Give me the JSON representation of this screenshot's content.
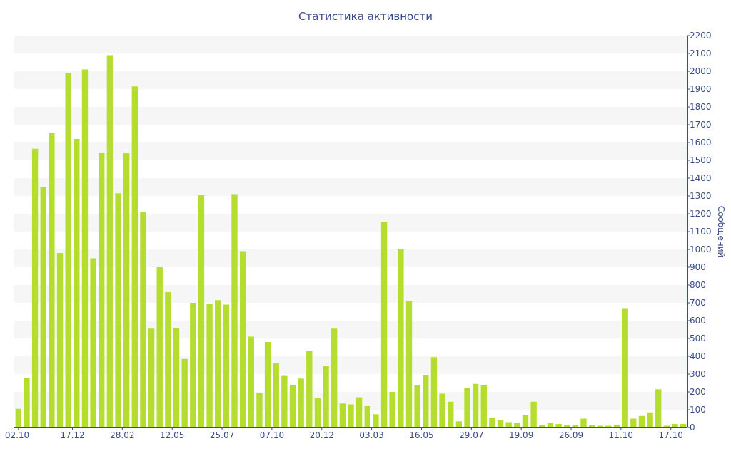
{
  "chart_data": {
    "type": "bar",
    "title": "Статистика активности",
    "ylabel": "Сообщений",
    "xlabel": "",
    "ylim": [
      0,
      2200
    ],
    "y_ticks": [
      0,
      100,
      200,
      300,
      400,
      500,
      600,
      700,
      800,
      900,
      1000,
      1100,
      1200,
      1300,
      1400,
      1500,
      1600,
      1700,
      1800,
      1900,
      2000,
      2100,
      2200
    ],
    "x_tick_labels": [
      {
        "label": "02.10",
        "index": 0
      },
      {
        "label": "17.12",
        "index": 6.5
      },
      {
        "label": "28.02",
        "index": 12.5
      },
      {
        "label": "12.05",
        "index": 18.5
      },
      {
        "label": "25.07",
        "index": 24.5
      },
      {
        "label": "07.10",
        "index": 30.5
      },
      {
        "label": "20.12",
        "index": 36.5
      },
      {
        "label": "03.03",
        "index": 42.5
      },
      {
        "label": "16.05",
        "index": 48.5
      },
      {
        "label": "29.07",
        "index": 54.5
      },
      {
        "label": "19.09",
        "index": 60.5
      },
      {
        "label": "26.09",
        "index": 66.5
      },
      {
        "label": "11.10",
        "index": 72.5
      },
      {
        "label": "17.10",
        "index": 78.5
      }
    ],
    "values": [
      105,
      280,
      1565,
      1350,
      1655,
      980,
      1990,
      1620,
      2010,
      950,
      1540,
      2090,
      1315,
      1540,
      1915,
      1210,
      555,
      900,
      760,
      560,
      385,
      700,
      1305,
      695,
      715,
      690,
      1310,
      990,
      510,
      195,
      480,
      360,
      290,
      240,
      275,
      430,
      165,
      345,
      555,
      135,
      130,
      170,
      120,
      75,
      1155,
      200,
      1000,
      710,
      240,
      295,
      395,
      190,
      145,
      35,
      220,
      245,
      240,
      55,
      40,
      30,
      25,
      70,
      145,
      15,
      25,
      20,
      15,
      15,
      50,
      15,
      10,
      10,
      15,
      670,
      50,
      65,
      85,
      215,
      10,
      20,
      20
    ],
    "bar_color": "#b5dd2f",
    "band_color": "#f6f6f6",
    "axis_color": "#3a4a8a",
    "grid": "alternating horizontal bands",
    "y_axis_side": "right"
  }
}
